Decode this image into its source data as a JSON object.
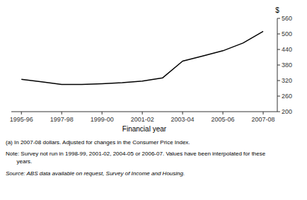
{
  "chart_data": {
    "type": "line",
    "x": [
      1995.5,
      1996.5,
      1997.5,
      1998.5,
      1999.5,
      2000.5,
      2001.5,
      2002.5,
      2003.5,
      2004.5,
      2005.5,
      2006.5,
      2007.5
    ],
    "values": [
      325,
      315,
      305,
      305,
      308,
      312,
      318,
      330,
      395,
      415,
      435,
      465,
      510
    ],
    "color": "#000000",
    "y_label": "$",
    "x_label": "Financial year",
    "ylim": [
      200,
      560
    ],
    "yticks": [
      200,
      260,
      320,
      380,
      440,
      500,
      560
    ],
    "xlim": [
      1995.0,
      2008.2
    ],
    "xticks": [
      {
        "value": 1995.5,
        "label": "1995-96"
      },
      {
        "value": 1997.5,
        "label": "1997-98"
      },
      {
        "value": 1999.5,
        "label": "1999-00"
      },
      {
        "value": 2001.5,
        "label": "2001-02"
      },
      {
        "value": 2003.5,
        "label": "2003-04"
      },
      {
        "value": 2005.5,
        "label": "2005-06"
      },
      {
        "value": 2007.5,
        "label": "2007-08"
      }
    ],
    "grid": false,
    "annotations": [
      "(a) In 2007-08 dollars. Adjusted for changes in the Consumer Price Index.",
      "Note: Survey not run in 1998-99, 2001-02, 2004-05 or 2006-07. Values have been interpolated for these",
      "       years.",
      "Source: ABS data available on request, Survey of Income and Housing."
    ]
  }
}
